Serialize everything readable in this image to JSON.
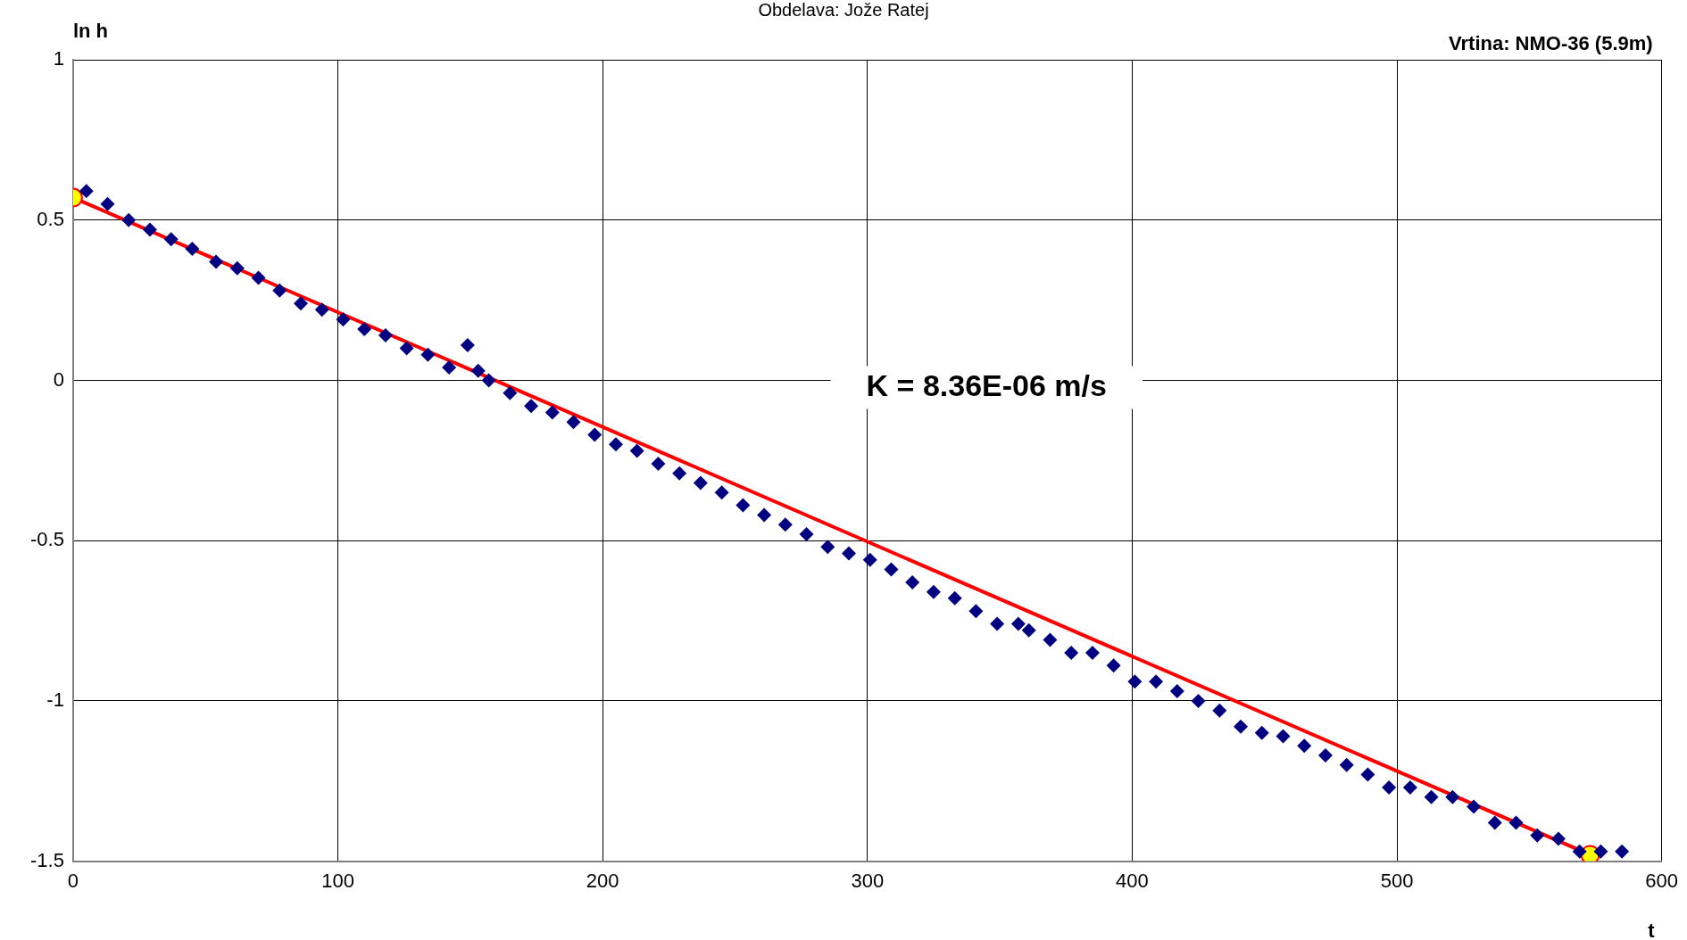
{
  "chart_data": {
    "type": "scatter",
    "xlabel": "t",
    "ylabel": "ln h",
    "annotations": [
      "Obdelava: Jože Ratej",
      "Vrtina: NMO-36 (5.9m)",
      "K = 8.36E-06 m/s"
    ],
    "xlim": [
      0,
      600
    ],
    "xticks": [
      0,
      100,
      200,
      300,
      400,
      500,
      600
    ],
    "ylim": [
      -1.5,
      1
    ],
    "yticks": [
      -1.5,
      -1,
      -0.5,
      0,
      0.5,
      1
    ],
    "grid": true,
    "legend": false,
    "series": [
      {
        "color": "#000080",
        "marker": "diamond",
        "x": [
          5,
          13,
          21,
          29,
          37,
          45,
          54,
          62,
          70,
          78,
          86,
          94,
          102,
          110,
          118,
          126,
          134,
          142,
          149,
          153,
          157,
          165,
          173,
          181,
          189,
          197,
          205,
          213,
          221,
          229,
          237,
          245,
          253,
          261,
          269,
          277,
          285,
          293,
          301,
          309,
          317,
          325,
          333,
          341,
          349,
          357,
          361,
          369,
          377,
          385,
          393,
          401,
          409,
          417,
          425,
          433,
          441,
          449,
          457,
          465,
          473,
          481,
          489,
          497,
          505,
          513,
          521,
          529,
          537,
          545,
          553,
          561,
          569,
          577,
          585
        ],
        "values": [
          0.59,
          0.55,
          0.5,
          0.47,
          0.44,
          0.41,
          0.37,
          0.35,
          0.32,
          0.28,
          0.24,
          0.22,
          0.19,
          0.16,
          0.14,
          0.1,
          0.08,
          0.04,
          0.11,
          0.03,
          0,
          -0.04,
          -0.08,
          -0.1,
          -0.13,
          -0.17,
          -0.2,
          -0.22,
          -0.26,
          -0.29,
          -0.32,
          -0.35,
          -0.39,
          -0.42,
          -0.45,
          -0.48,
          -0.52,
          -0.54,
          -0.56,
          -0.59,
          -0.63,
          -0.66,
          -0.68,
          -0.72,
          -0.76,
          -0.76,
          -0.78,
          -0.81,
          -0.85,
          -0.85,
          -0.89,
          -0.94,
          -0.94,
          -0.97,
          -1,
          -1.03,
          -1.08,
          -1.1,
          -1.11,
          -1.14,
          -1.17,
          -1.2,
          -1.23,
          -1.27,
          -1.27,
          -1.3,
          -1.3,
          -1.33,
          -1.38,
          -1.38,
          -1.42,
          -1.43,
          -1.47,
          -1.47,
          -1.47
        ]
      },
      {
        "type": "line",
        "color": "#ff0000",
        "marker": "circle",
        "x": [
          0,
          573
        ],
        "values": [
          0.57,
          -1.48
        ]
      }
    ]
  }
}
